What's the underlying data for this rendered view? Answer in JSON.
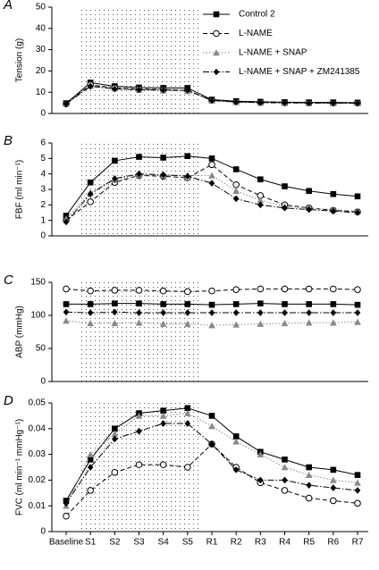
{
  "chart_data": [
    {
      "type": "line",
      "panel": "A",
      "y_label": "Tension (g)",
      "ylim": [
        0,
        50
      ],
      "yticks": [
        0,
        10,
        20,
        30,
        40,
        50
      ],
      "legend": "upper right",
      "series": [
        {
          "name": "Control 2",
          "color": "#000000",
          "marker": "square",
          "dash": "solid",
          "values": [
            4.8,
            14.5,
            12.8,
            12.2,
            12,
            12,
            6.5,
            5.8,
            5.5,
            5.3,
            5.2,
            5.2,
            5.1
          ]
        },
        {
          "name": "L-NAME",
          "color": "#000000",
          "marker": "circle",
          "dash": "dashed",
          "values": [
            4.5,
            13.5,
            12,
            11.5,
            11.2,
            10.8,
            6.2,
            5.5,
            5.2,
            5,
            5,
            4.9,
            4.9
          ]
        },
        {
          "name": "L-NAME + SNAP",
          "color": "#888888",
          "marker": "triangle",
          "dash": "dotted",
          "values": [
            4.6,
            13,
            11.8,
            11,
            10.8,
            10.5,
            6,
            5.3,
            5,
            4.9,
            4.8,
            4.8,
            4.8
          ]
        },
        {
          "name": "L-NAME + SNAP + ZM241385",
          "color": "#000000",
          "marker": "diamond",
          "dash": "dashdot",
          "values": [
            4.5,
            12.8,
            11.5,
            11.2,
            11,
            11,
            6.1,
            5.4,
            5.1,
            5,
            4.9,
            4.9,
            4.8
          ]
        }
      ]
    },
    {
      "type": "line",
      "panel": "B",
      "y_label": "FBF (ml min⁻¹)",
      "ylim": [
        0,
        6
      ],
      "yticks": [
        0,
        1,
        2,
        3,
        4,
        5,
        6
      ],
      "series": [
        {
          "color": "#000000",
          "marker": "square",
          "dash": "solid",
          "values": [
            1.3,
            3.45,
            4.85,
            5.1,
            5.05,
            5.15,
            5,
            4.3,
            3.65,
            3.2,
            2.9,
            2.7,
            2.55
          ]
        },
        {
          "color": "#000000",
          "marker": "circle",
          "dash": "dashed",
          "values": [
            1,
            2.2,
            3.45,
            3.9,
            3.85,
            3.75,
            4.6,
            3.3,
            2.6,
            2,
            1.8,
            1.65,
            1.55
          ]
        },
        {
          "color": "#888888",
          "marker": "triangle",
          "dash": "dotted",
          "values": [
            1.1,
            2.8,
            3.6,
            3.95,
            3.9,
            3.9,
            3.9,
            2.9,
            2.3,
            1.9,
            1.8,
            1.7,
            1.6
          ]
        },
        {
          "color": "#000000",
          "marker": "diamond",
          "dash": "dashdot",
          "values": [
            0.9,
            2.7,
            3.7,
            4,
            3.95,
            3.85,
            3.4,
            2.4,
            2,
            1.8,
            1.7,
            1.6,
            1.5
          ]
        }
      ]
    },
    {
      "type": "line",
      "panel": "C",
      "y_label": "ABP (mmHg)",
      "ylim": [
        0,
        150
      ],
      "yticks": [
        0,
        50,
        100,
        150
      ],
      "series": [
        {
          "color": "#000000",
          "marker": "square",
          "dash": "solid",
          "values": [
            117,
            117,
            118,
            118,
            117,
            117,
            116,
            117,
            118,
            117,
            117,
            117,
            116
          ]
        },
        {
          "color": "#000000",
          "marker": "circle",
          "dash": "dashed",
          "values": [
            140,
            137,
            138,
            138,
            137,
            136,
            137,
            139,
            140,
            140,
            140,
            140,
            139
          ]
        },
        {
          "color": "#888888",
          "marker": "triangle",
          "dash": "dotted",
          "values": [
            92,
            88,
            88,
            89,
            87,
            87,
            85,
            86,
            87,
            88,
            89,
            89,
            90
          ]
        },
        {
          "color": "#000000",
          "marker": "diamond",
          "dash": "dashdot",
          "values": [
            105,
            104,
            105,
            104,
            104,
            104,
            104,
            104,
            104,
            104,
            104,
            104,
            104
          ]
        }
      ]
    },
    {
      "type": "line",
      "panel": "D",
      "y_label": "FVC (ml min⁻¹ mmHg⁻¹)",
      "ylim": [
        0,
        0.05
      ],
      "yticks": [
        0,
        0.01,
        0.02,
        0.03,
        0.04,
        0.05
      ],
      "categories": [
        "Baseline",
        "S1",
        "S2",
        "S3",
        "S4",
        "S5",
        "R1",
        "R2",
        "R3",
        "R4",
        "R5",
        "R6",
        "R7"
      ],
      "series": [
        {
          "color": "#000000",
          "marker": "square",
          "dash": "solid",
          "values": [
            0.012,
            0.028,
            0.04,
            0.046,
            0.047,
            0.048,
            0.045,
            0.037,
            0.031,
            0.028,
            0.025,
            0.024,
            0.022
          ]
        },
        {
          "color": "#000000",
          "marker": "circle",
          "dash": "dashed",
          "values": [
            0.006,
            0.016,
            0.023,
            0.026,
            0.026,
            0.025,
            0.034,
            0.025,
            0.019,
            0.016,
            0.013,
            0.012,
            0.011
          ]
        },
        {
          "color": "#888888",
          "marker": "triangle",
          "dash": "dotted",
          "values": [
            0.01,
            0.03,
            0.038,
            0.045,
            0.045,
            0.046,
            0.041,
            0.035,
            0.03,
            0.025,
            0.022,
            0.02,
            0.019
          ]
        },
        {
          "color": "#000000",
          "marker": "diamond",
          "dash": "dashdot",
          "values": [
            0.011,
            0.025,
            0.036,
            0.039,
            0.042,
            0.042,
            0.034,
            0.024,
            0.02,
            0.02,
            0.018,
            0.017,
            0.016
          ]
        }
      ]
    }
  ]
}
